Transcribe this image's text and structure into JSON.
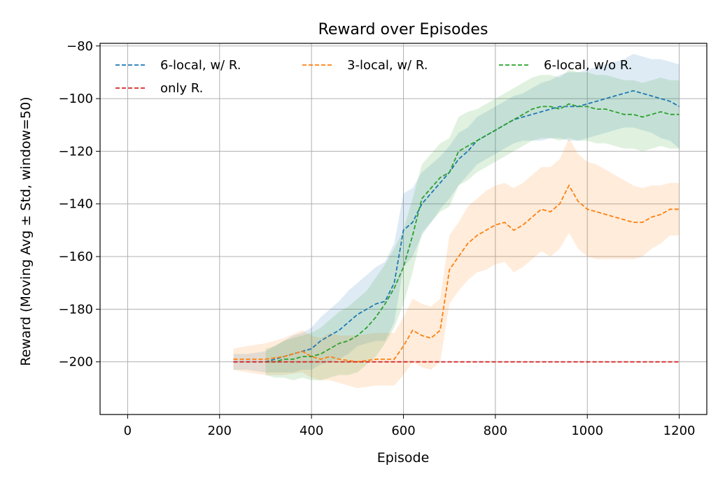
{
  "chart_data": {
    "type": "line",
    "title": "Reward over Episodes",
    "xlabel": "Episode",
    "ylabel": "Reward (Moving Avg ± Std, window=50)",
    "xlim": [
      -60,
      1260
    ],
    "ylim": [
      -220,
      -79
    ],
    "xticks": [
      0,
      200,
      400,
      600,
      800,
      1000,
      1200
    ],
    "yticks": [
      -80,
      -100,
      -120,
      -140,
      -160,
      -180,
      -200
    ],
    "grid": true,
    "legend_position": "top",
    "series": [
      {
        "name": "6-local, w/ R.",
        "color": "#1f77b4",
        "x": [
          230,
          260,
          300,
          320,
          340,
          360,
          380,
          400,
          420,
          440,
          460,
          480,
          500,
          520,
          540,
          560,
          580,
          600,
          620,
          640,
          660,
          680,
          700,
          720,
          740,
          760,
          780,
          800,
          820,
          840,
          860,
          880,
          900,
          920,
          940,
          960,
          980,
          1000,
          1020,
          1040,
          1060,
          1080,
          1100,
          1120,
          1140,
          1160,
          1180,
          1200
        ],
        "y": [
          -200,
          -200,
          -200,
          -199,
          -198,
          -197,
          -196,
          -195,
          -192,
          -190,
          -188,
          -185,
          -182,
          -180,
          -178,
          -177,
          -170,
          -150,
          -147,
          -140,
          -136,
          -132,
          -128,
          -123,
          -120,
          -116,
          -114,
          -112,
          -110,
          -108,
          -107,
          -106,
          -105,
          -104,
          -103,
          -103,
          -103,
          -102,
          -101,
          -100,
          -99,
          -98,
          -97,
          -98,
          -99,
          -100,
          -101,
          -103
        ],
        "std": [
          3,
          3,
          4,
          5,
          6,
          7,
          7,
          8,
          9,
          10,
          11,
          12,
          12,
          13,
          14,
          15,
          15,
          14,
          13,
          12,
          11,
          10,
          10,
          10,
          9,
          9,
          9,
          9,
          9,
          9,
          9,
          10,
          11,
          11,
          12,
          13,
          13,
          13,
          13,
          13,
          13,
          13,
          14,
          14,
          14,
          15,
          15,
          16
        ]
      },
      {
        "name": "3-local, w/ R.",
        "color": "#ff7f0e",
        "x": [
          230,
          260,
          300,
          340,
          380,
          400,
          420,
          440,
          460,
          500,
          540,
          580,
          600,
          620,
          640,
          660,
          680,
          700,
          720,
          740,
          760,
          780,
          800,
          820,
          840,
          860,
          880,
          900,
          920,
          940,
          960,
          980,
          1000,
          1020,
          1040,
          1060,
          1080,
          1100,
          1120,
          1140,
          1160,
          1180,
          1200
        ],
        "y": [
          -199,
          -199,
          -199,
          -198,
          -196,
          -198,
          -199,
          -198,
          -199,
          -200,
          -199,
          -199,
          -194,
          -188,
          -190,
          -191,
          -188,
          -165,
          -160,
          -155,
          -152,
          -150,
          -148,
          -147,
          -150,
          -148,
          -145,
          -142,
          -143,
          -140,
          -133,
          -139,
          -142,
          -143,
          -144,
          -145,
          -146,
          -147,
          -147,
          -145,
          -144,
          -142,
          -142
        ],
        "std": [
          4,
          5,
          6,
          7,
          8,
          8,
          8,
          9,
          9,
          10,
          10,
          10,
          11,
          12,
          12,
          12,
          12,
          13,
          13,
          14,
          14,
          15,
          15,
          15,
          16,
          16,
          16,
          16,
          17,
          17,
          18,
          18,
          18,
          18,
          17,
          16,
          15,
          14,
          13,
          12,
          11,
          10,
          10
        ]
      },
      {
        "name": "6-local, w/o R.",
        "color": "#2ca02c",
        "x": [
          300,
          320,
          340,
          360,
          380,
          400,
          420,
          440,
          460,
          480,
          500,
          520,
          540,
          560,
          580,
          600,
          620,
          640,
          660,
          680,
          700,
          720,
          740,
          760,
          780,
          800,
          820,
          840,
          860,
          880,
          900,
          920,
          940,
          960,
          980,
          1000,
          1020,
          1040,
          1060,
          1080,
          1100,
          1120,
          1140,
          1160,
          1180,
          1200
        ],
        "y": [
          -200,
          -200,
          -199,
          -199,
          -198,
          -198,
          -197,
          -195,
          -193,
          -192,
          -190,
          -187,
          -183,
          -178,
          -172,
          -164,
          -152,
          -138,
          -134,
          -130,
          -128,
          -120,
          -118,
          -116,
          -114,
          -112,
          -110,
          -108,
          -106,
          -104,
          -103,
          -103,
          -104,
          -102,
          -103,
          -103,
          -104,
          -104,
          -105,
          -106,
          -106,
          -107,
          -106,
          -105,
          -106,
          -106
        ],
        "std": [
          5,
          6,
          7,
          8,
          8,
          9,
          10,
          11,
          12,
          13,
          14,
          14,
          15,
          15,
          15,
          14,
          14,
          13,
          13,
          13,
          13,
          13,
          13,
          12,
          12,
          12,
          12,
          12,
          12,
          12,
          12,
          12,
          12,
          13,
          13,
          13,
          13,
          13,
          13,
          13,
          13,
          13,
          13,
          13,
          13,
          13
        ]
      },
      {
        "name": "only R.",
        "color": "#d62728",
        "x": [
          230,
          1200
        ],
        "y": [
          -200,
          -200
        ]
      }
    ]
  }
}
